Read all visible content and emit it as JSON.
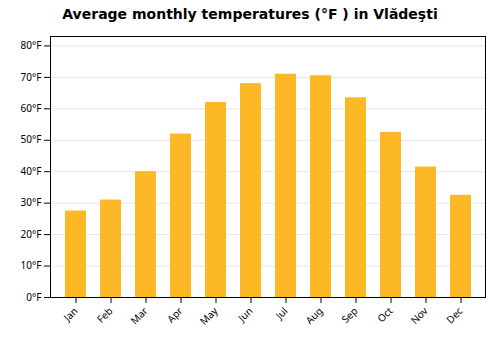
{
  "chart_data": {
    "type": "bar",
    "title": "Average monthly temperatures (°F ) in Vlădeşti",
    "categories": [
      "Jan",
      "Feb",
      "Mar",
      "Apr",
      "May",
      "Jun",
      "Jul",
      "Aug",
      "Sep",
      "Oct",
      "Nov",
      "Dec"
    ],
    "values": [
      27.5,
      31.0,
      40.0,
      52.0,
      62.0,
      68.0,
      71.0,
      70.5,
      63.5,
      52.5,
      41.5,
      32.5
    ],
    "color": "#FDB825",
    "ylim": [
      0,
      83
    ],
    "yticks": [
      {
        "value": 0,
        "label": "0°F"
      },
      {
        "value": 10,
        "label": "10°F"
      },
      {
        "value": 20,
        "label": "20°F"
      },
      {
        "value": 30,
        "label": "30°F"
      },
      {
        "value": 40,
        "label": "40°F"
      },
      {
        "value": 50,
        "label": "50°F"
      },
      {
        "value": 60,
        "label": "60°F"
      },
      {
        "value": 70,
        "label": "70°F"
      },
      {
        "value": 80,
        "label": "80°F"
      }
    ],
    "grid": true
  }
}
